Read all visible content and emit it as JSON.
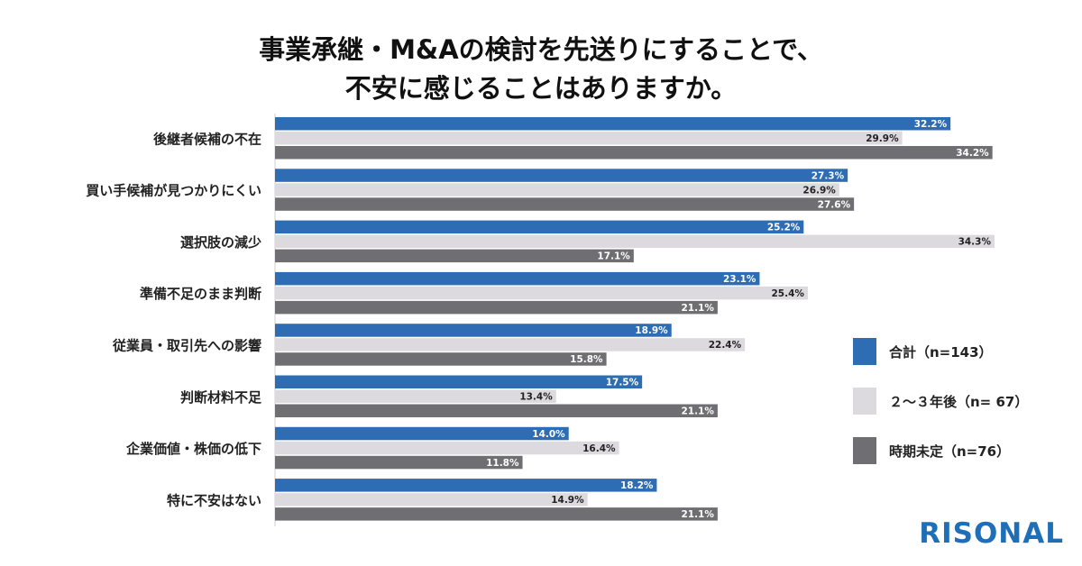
{
  "title": {
    "line1": "事業承継・M&Aの検討を先送りにすることで、",
    "line2": "不安に感じることはありますか。"
  },
  "chart_data": {
    "type": "bar",
    "orientation": "horizontal",
    "categories": [
      "後継者候補の不在",
      "買い手候補が見つかりにくい",
      "選択肢の減少",
      "準備不足のまま判断",
      "従業員・取引先への影響",
      "判断材料不足",
      "企業価値・株価の低下",
      "特に不安はない"
    ],
    "series": [
      {
        "name": "合計（n=143）",
        "color": "#2e6db4",
        "label_color": "#ffffff",
        "values": [
          32.2,
          27.3,
          25.2,
          23.1,
          18.9,
          17.5,
          14.0,
          18.2
        ]
      },
      {
        "name": "２～３年後（n= 67）",
        "color": "#dcdadf",
        "label_color": "#222222",
        "values": [
          29.9,
          26.9,
          34.3,
          25.4,
          22.4,
          13.4,
          16.4,
          14.9
        ]
      },
      {
        "name": "時期未定（n=76）",
        "color": "#6f6e72",
        "label_color": "#ffffff",
        "values": [
          34.2,
          27.6,
          17.1,
          21.1,
          15.8,
          21.1,
          11.8,
          21.1
        ]
      }
    ],
    "value_suffix": "%",
    "xlim": [
      0,
      34.3
    ],
    "grid": false,
    "legend_position": "right"
  },
  "brand": {
    "logo_text": "RISONAL",
    "logo_color": "#1f6fb8"
  }
}
